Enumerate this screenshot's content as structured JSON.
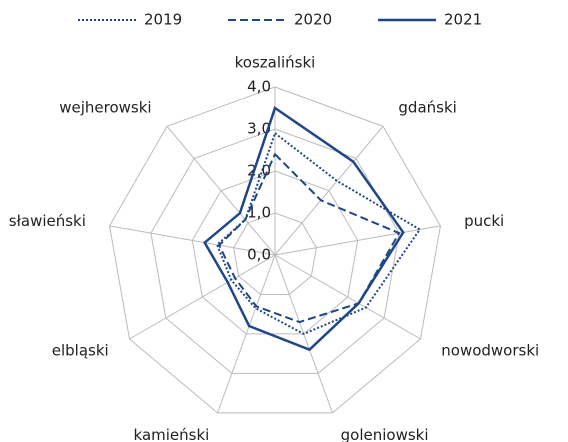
{
  "chart_data": {
    "type": "radar",
    "categories": [
      "koszaliński",
      "gdański",
      "pucki",
      "nowodworski",
      "goleniowski",
      "kamieński",
      "elbląski",
      "sławieński",
      "wejherowski"
    ],
    "series": [
      {
        "name": "2019",
        "color": "#1f4788",
        "line_style": "dotted",
        "values": [
          2.9,
          2.3,
          3.5,
          2.5,
          2.0,
          1.35,
          1.2,
          1.4,
          1.1
        ]
      },
      {
        "name": "2020",
        "color": "#1f4788",
        "line_style": "dashed",
        "values": [
          2.4,
          1.7,
          3.0,
          2.3,
          1.7,
          1.3,
          1.1,
          1.35,
          1.1
        ]
      },
      {
        "name": "2021",
        "color": "#1f4788",
        "line_style": "solid",
        "values": [
          3.5,
          2.9,
          3.1,
          2.3,
          2.4,
          1.8,
          1.3,
          1.7,
          1.3
        ]
      }
    ],
    "ylim": [
      0,
      4
    ],
    "yticks": [
      {
        "value": 0,
        "label": "0,0"
      },
      {
        "value": 1,
        "label": "1,0"
      },
      {
        "value": 2,
        "label": "2,0"
      },
      {
        "value": 3,
        "label": "3,0"
      },
      {
        "value": 4,
        "label": "4,0"
      }
    ],
    "grid": true,
    "legend": "top"
  }
}
